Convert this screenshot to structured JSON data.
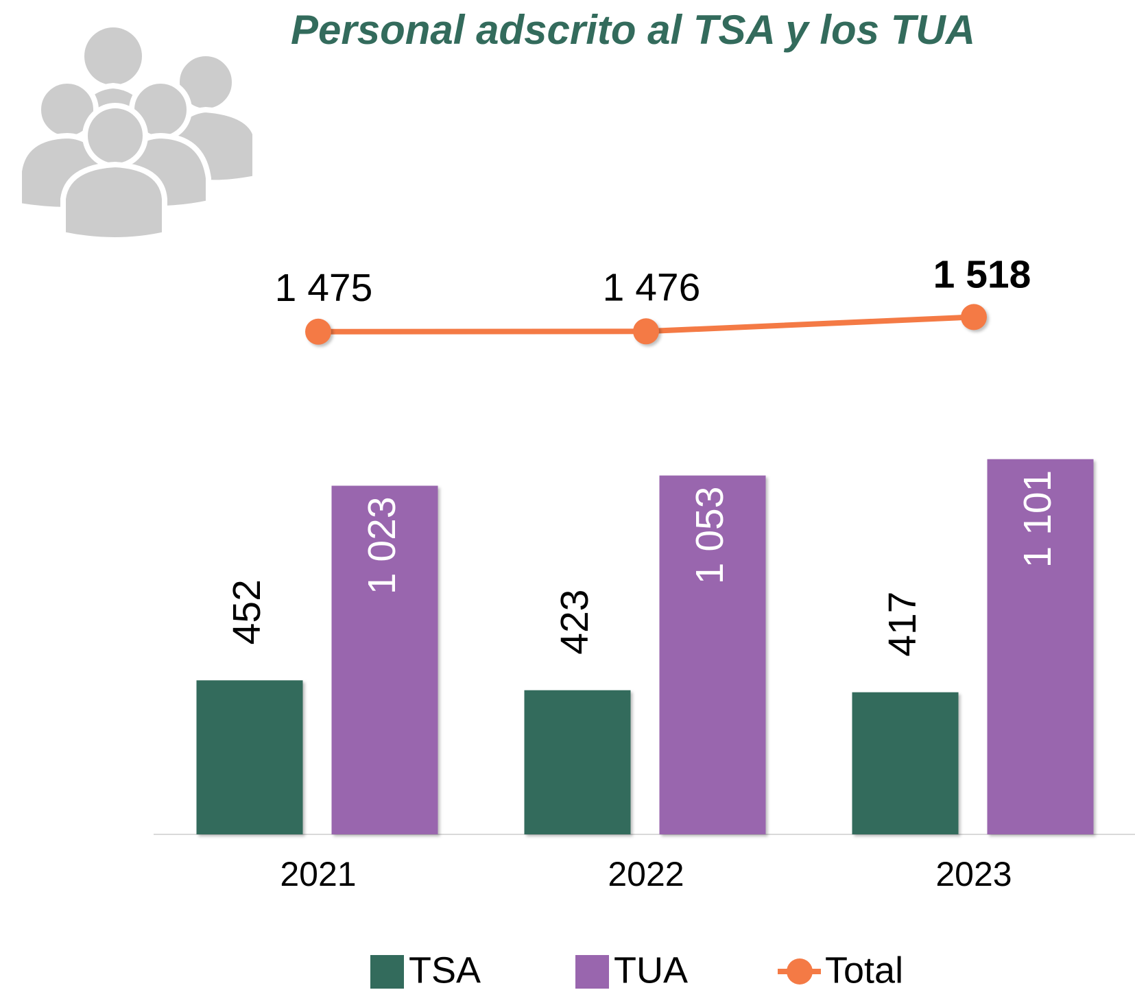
{
  "chart_data": {
    "type": "bar",
    "title": "Personal adscrito al TSA y los TUA",
    "categories": [
      "2021",
      "2022",
      "2023"
    ],
    "series": [
      {
        "name": "TSA",
        "color": "#336b5c",
        "values": [
          452,
          423,
          417
        ]
      },
      {
        "name": "TUA",
        "color": "#9966ae",
        "values": [
          1023,
          1053,
          1101
        ],
        "value_labels": [
          "1 023",
          "1 053",
          "1 101"
        ]
      },
      {
        "name": "Total",
        "type": "line",
        "color": "#f47a45",
        "values": [
          1475,
          1476,
          1518
        ],
        "value_labels": [
          "1 475",
          "1 476",
          "1 518"
        ]
      }
    ],
    "ylim": [
      0,
      2400
    ],
    "legend": "bottom"
  }
}
